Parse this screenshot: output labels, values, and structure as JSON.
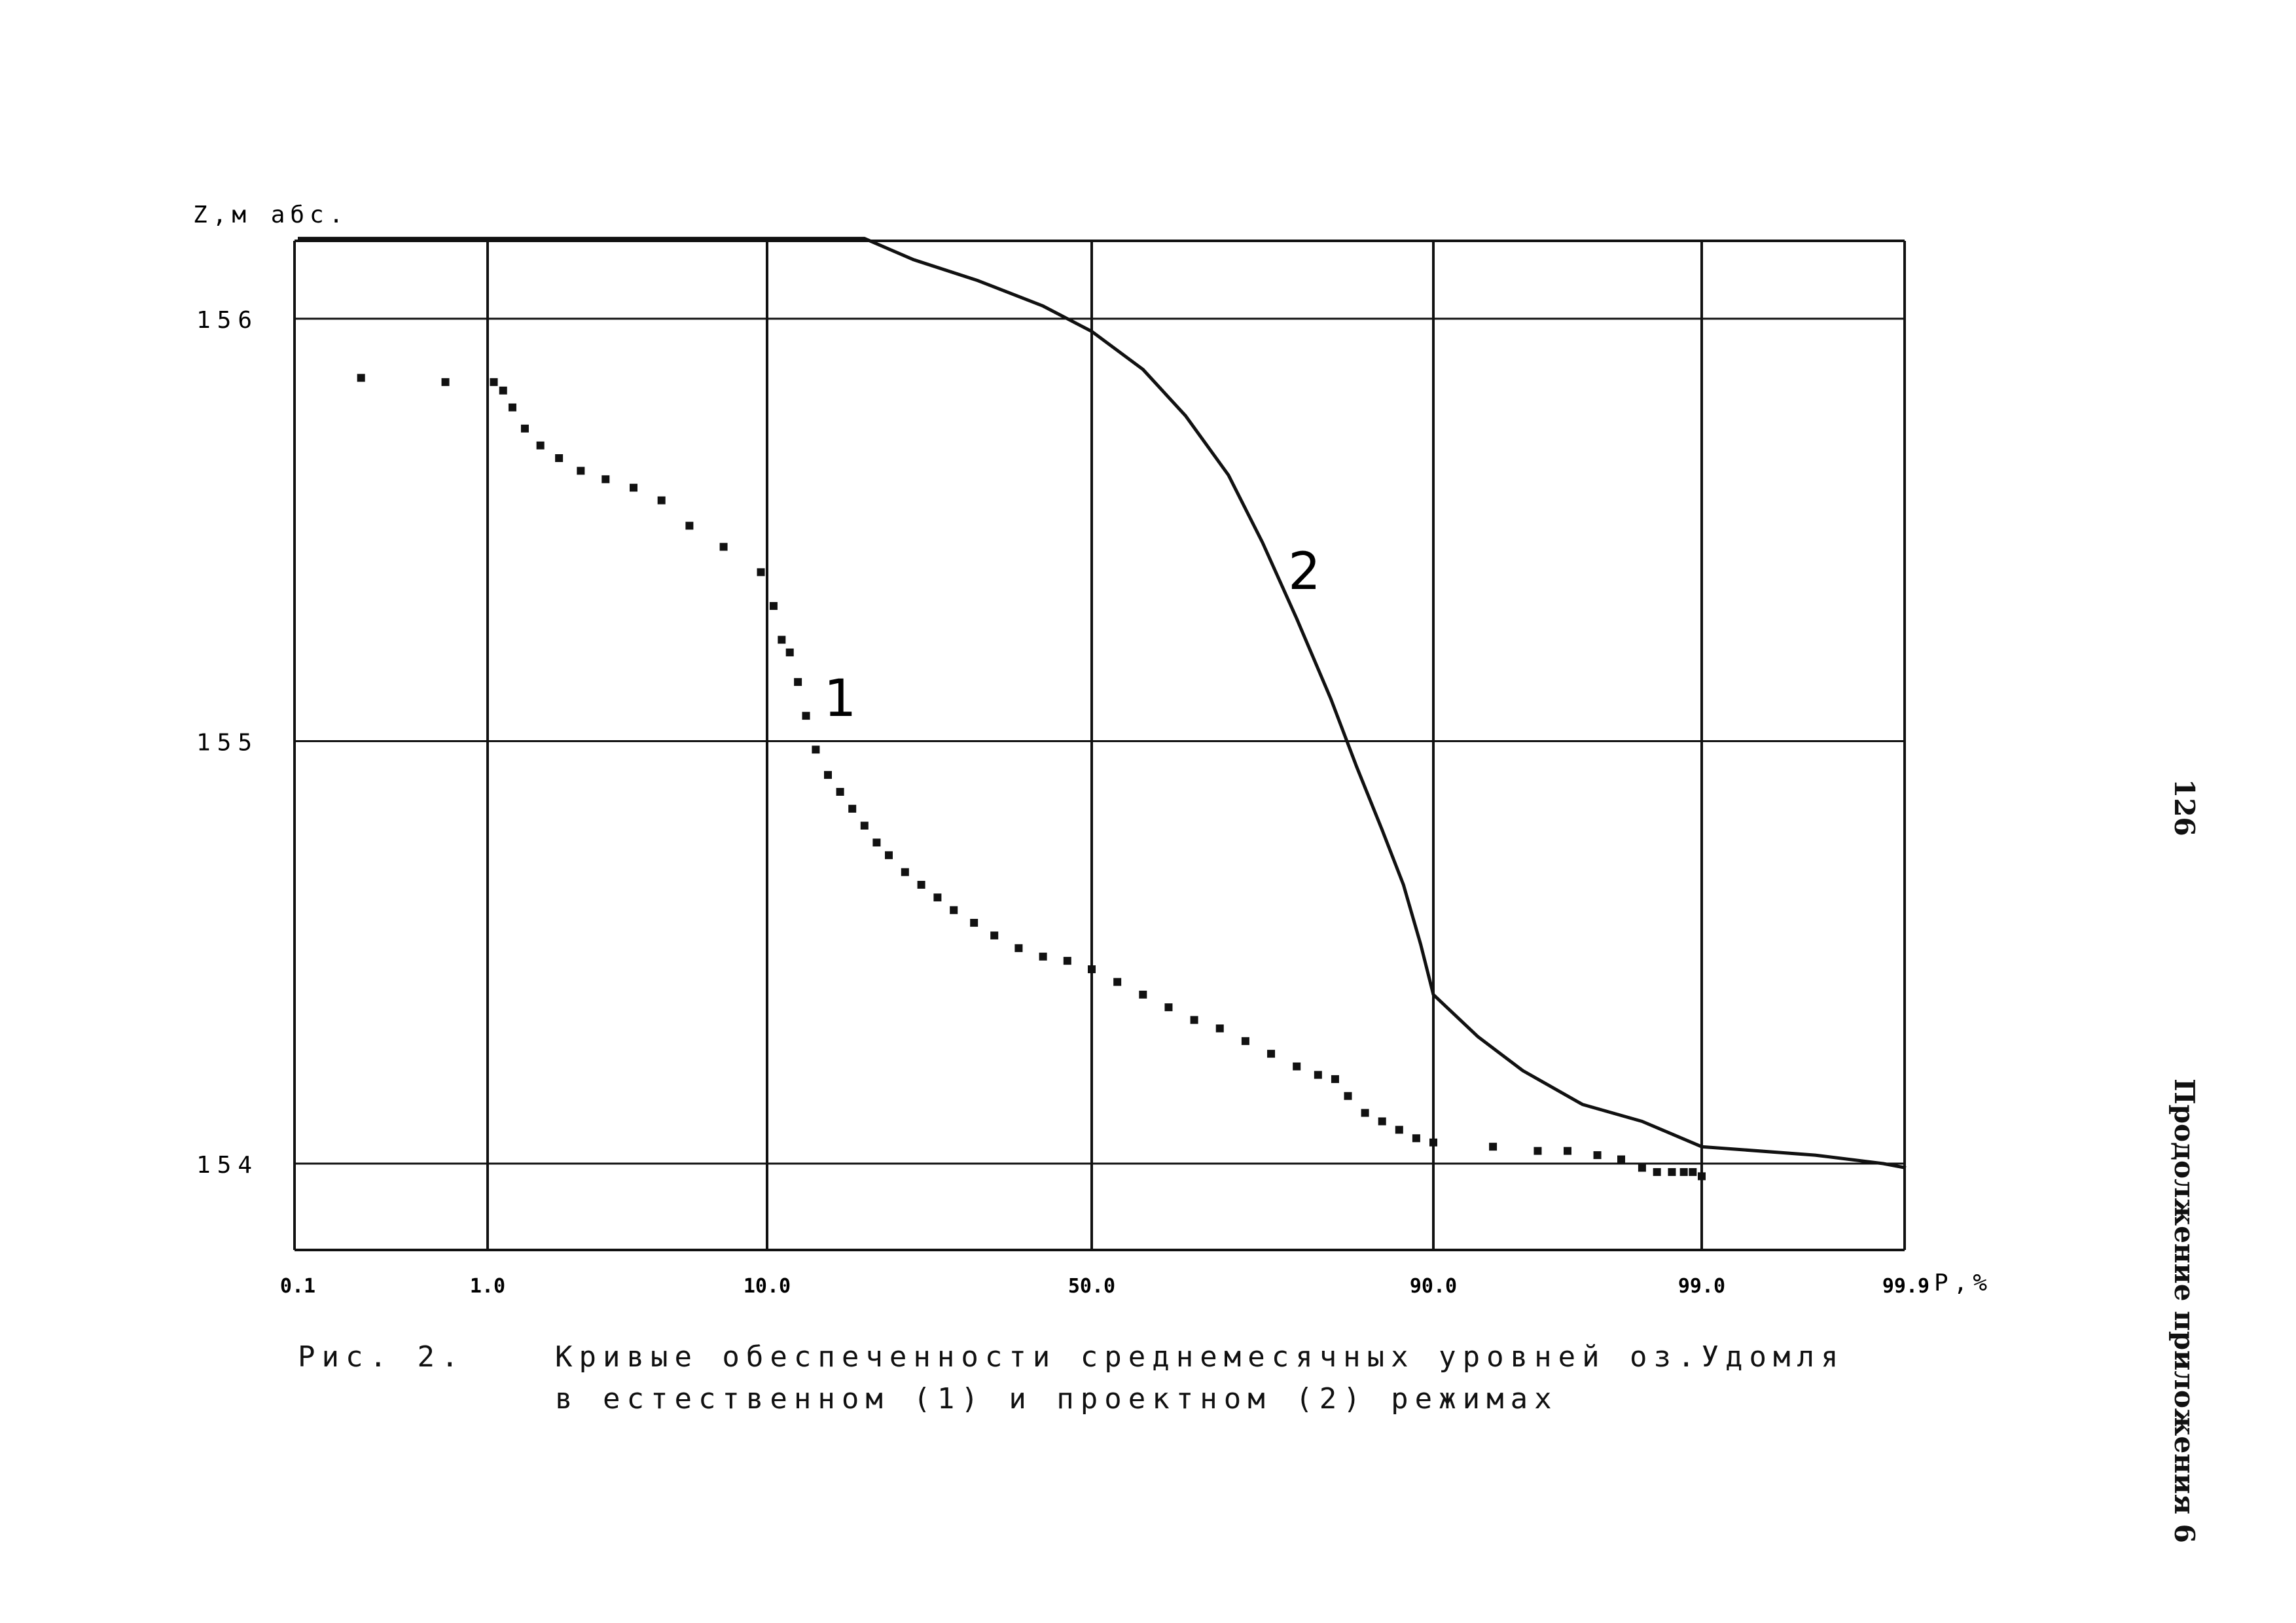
{
  "caption": {
    "fig_label": "Рис. 2.",
    "line1": "Кривые обеспеченности среднемесячных уровней оз.Удомля",
    "line2": "в естественном (1) и проектном (2) режимах"
  },
  "page_number": "126",
  "side_note": "Продолжение приложения 6",
  "chart_data": {
    "type": "line",
    "title": "",
    "ylabel": "Z,м абс.",
    "xlabel": "P,%",
    "x_scale": "probability",
    "x_ticks": [
      {
        "value": 0.1,
        "label": "0.1"
      },
      {
        "value": 1.0,
        "label": "1.0"
      },
      {
        "value": 10.0,
        "label": "10.0"
      },
      {
        "value": 50.0,
        "label": "50.0"
      },
      {
        "value": 90.0,
        "label": "90.0"
      },
      {
        "value": 99.0,
        "label": "99.0"
      },
      {
        "value": 99.9,
        "label": "99.9"
      }
    ],
    "y_ticks": [
      {
        "value": 154,
        "label": "154"
      },
      {
        "value": 155,
        "label": "155"
      },
      {
        "value": 156,
        "label": "156"
      }
    ],
    "ylim": [
      153.82,
      156.18
    ],
    "grid": true,
    "series": [
      {
        "name": "1",
        "style": "dotted",
        "color": "#111111",
        "label_at": {
          "x": 17.0,
          "y": 155.06
        },
        "points": [
          [
            0.4,
            155.86
          ],
          [
            0.8,
            155.85
          ],
          [
            1.2,
            155.85
          ],
          [
            1.5,
            155.83
          ],
          [
            1.8,
            155.79
          ],
          [
            2.2,
            155.74
          ],
          [
            2.7,
            155.7
          ],
          [
            3.3,
            155.67
          ],
          [
            4.0,
            155.64
          ],
          [
            4.8,
            155.62
          ],
          [
            5.7,
            155.6
          ],
          [
            6.6,
            155.57
          ],
          [
            7.5,
            155.51
          ],
          [
            8.6,
            155.46
          ],
          [
            9.8,
            155.4
          ],
          [
            10.8,
            155.32
          ],
          [
            11.8,
            155.24
          ],
          [
            12.8,
            155.21
          ],
          [
            13.8,
            155.14
          ],
          [
            14.8,
            155.06
          ],
          [
            16.0,
            154.98
          ],
          [
            17.5,
            154.92
          ],
          [
            19.0,
            154.88
          ],
          [
            20.5,
            154.84
          ],
          [
            22.0,
            154.8
          ],
          [
            23.5,
            154.76
          ],
          [
            25.0,
            154.73
          ],
          [
            27.0,
            154.69
          ],
          [
            29.0,
            154.66
          ],
          [
            31.0,
            154.63
          ],
          [
            33.0,
            154.6
          ],
          [
            35.5,
            154.57
          ],
          [
            38.0,
            154.54
          ],
          [
            41.0,
            154.51
          ],
          [
            44.0,
            154.49
          ],
          [
            47.0,
            154.48
          ],
          [
            50.0,
            154.46
          ],
          [
            53.0,
            154.43
          ],
          [
            56.0,
            154.4
          ],
          [
            59.0,
            154.37
          ],
          [
            62.0,
            154.34
          ],
          [
            65.0,
            154.32
          ],
          [
            68.0,
            154.29
          ],
          [
            71.0,
            154.26
          ],
          [
            74.0,
            154.23
          ],
          [
            76.5,
            154.21
          ],
          [
            78.5,
            154.2
          ],
          [
            80.0,
            154.16
          ],
          [
            82.0,
            154.12
          ],
          [
            84.0,
            154.1
          ],
          [
            86.0,
            154.08
          ],
          [
            88.0,
            154.06
          ],
          [
            90.0,
            154.05
          ],
          [
            92.0,
            154.04
          ],
          [
            93.5,
            154.03
          ],
          [
            94.5,
            154.03
          ],
          [
            95.5,
            154.02
          ],
          [
            96.3,
            154.01
          ],
          [
            97.0,
            153.99
          ],
          [
            97.5,
            153.98
          ],
          [
            98.0,
            153.98
          ],
          [
            98.4,
            153.98
          ],
          [
            98.7,
            153.98
          ],
          [
            99.0,
            153.97
          ]
        ]
      },
      {
        "name": "2",
        "style": "solid",
        "color": "#111111",
        "label_at": {
          "x": 73.0,
          "y": 155.36
        },
        "points": [
          [
            0.1,
            156.19
          ],
          [
            1.0,
            156.19
          ],
          [
            10.0,
            156.19
          ],
          [
            22.0,
            156.19
          ],
          [
            28.0,
            156.14
          ],
          [
            36.0,
            156.09
          ],
          [
            44.0,
            156.03
          ],
          [
            50.0,
            155.97
          ],
          [
            56.0,
            155.88
          ],
          [
            61.0,
            155.77
          ],
          [
            66.0,
            155.63
          ],
          [
            70.0,
            155.47
          ],
          [
            74.0,
            155.29
          ],
          [
            78.0,
            155.1
          ],
          [
            81.0,
            154.94
          ],
          [
            84.0,
            154.79
          ],
          [
            86.5,
            154.66
          ],
          [
            88.5,
            154.52
          ],
          [
            90.0,
            154.4
          ],
          [
            91.5,
            154.3
          ],
          [
            93.0,
            154.22
          ],
          [
            95.0,
            154.14
          ],
          [
            97.0,
            154.1
          ],
          [
            98.0,
            154.07
          ],
          [
            99.0,
            154.04
          ],
          [
            99.5,
            154.02
          ],
          [
            99.8,
            154.0
          ],
          [
            99.9,
            153.99
          ]
        ]
      }
    ]
  }
}
